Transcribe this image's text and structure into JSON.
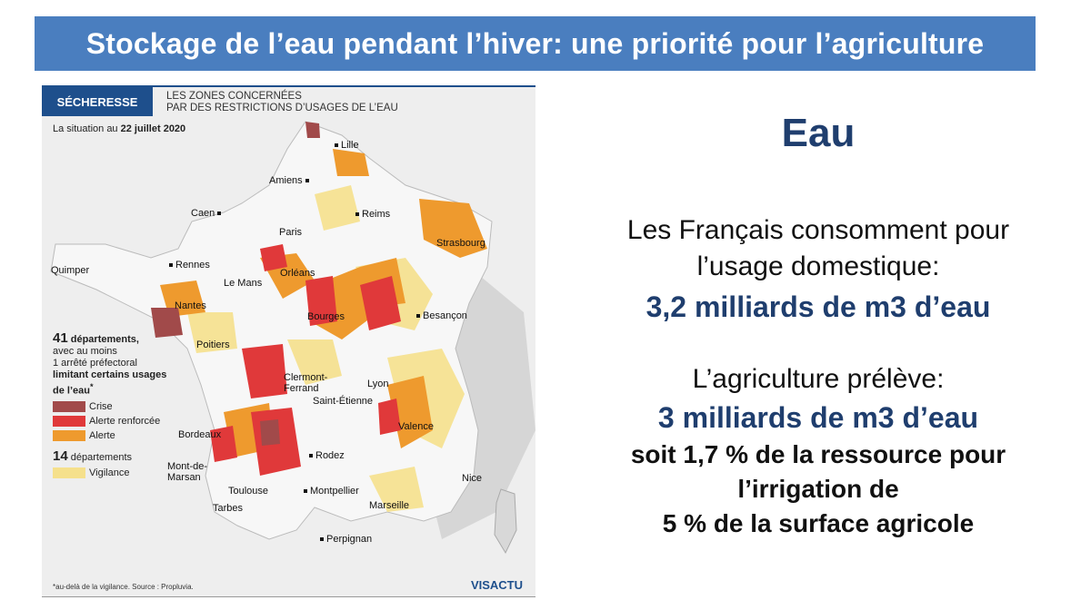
{
  "title": "Stockage de l’eau pendant l’hiver: une priorité pour l’agriculture",
  "map": {
    "tag": "SÉCHERESSE",
    "subtitle_line1": "LES ZONES CONCERNÉES",
    "subtitle_line2": "PAR DES RESTRICTIONS D’USAGES DE L’EAU",
    "situation_prefix": "La situation au",
    "situation_date": "22 juillet 2020",
    "legend": {
      "count1": "41",
      "count1_text": "départements,",
      "line2": "avec au moins",
      "line3": "1 arrêté préfectoral",
      "line4": "limitant certains usages",
      "line5": "de l’eau",
      "star": "*",
      "items": [
        {
          "label": "Crise",
          "color": "#a14a4a"
        },
        {
          "label": "Alerte renforcée",
          "color": "#e0393a"
        },
        {
          "label": "Alerte",
          "color": "#ee9a2e"
        }
      ],
      "count2": "14",
      "count2_text": "départements",
      "vigilance": {
        "label": "Vigilance",
        "color": "#f5e08c"
      }
    },
    "cities": {
      "lille": "Lille",
      "amiens": "Amiens",
      "caen": "Caen",
      "reims": "Reims",
      "paris": "Paris",
      "strasbourg": "Strasbourg",
      "quimper": "Quimper",
      "rennes": "Rennes",
      "lemans": "Le Mans",
      "orleans": "Orléans",
      "nantes": "Nantes",
      "bourges": "Bourges",
      "besancon": "Besançon",
      "poitiers": "Poitiers",
      "clermont1": "Clermont-",
      "clermont2": "Ferrand",
      "lyon": "Lyon",
      "saintetienne": "Saint-Étienne",
      "valence": "Valence",
      "bordeaux": "Bordeaux",
      "rodez": "Rodez",
      "montdemarsan1": "Mont-de-",
      "montdemarsan2": "Marsan",
      "nice": "Nice",
      "toulouse": "Toulouse",
      "montpellier": "Montpellier",
      "marseille": "Marseille",
      "tarbes": "Tarbes",
      "perpignan": "Perpignan"
    },
    "footnote": "*au-delà de la vigilance. Source : Propluvia.",
    "brand": "VISACTU"
  },
  "content": {
    "heading": "Eau",
    "line1": "Les Français consomment pour",
    "line2": "l’usage domestique:",
    "highlight1": "3,2 milliards de m3 d’eau",
    "line3": "L’agriculture prélève:",
    "highlight2": "3 milliards de m3 d’eau",
    "strong1": "soit 1,7 % de la ressource pour",
    "strong2": "l’irrigation de",
    "strong3": "5 % de la surface agricole"
  },
  "colors": {
    "title_bar": "#4a7ebf",
    "heading": "#1f3e6e",
    "crise": "#a14a4a",
    "alerte_renforcee": "#e0393a",
    "alerte": "#ee9a2e",
    "vigilance": "#f5e08c"
  }
}
